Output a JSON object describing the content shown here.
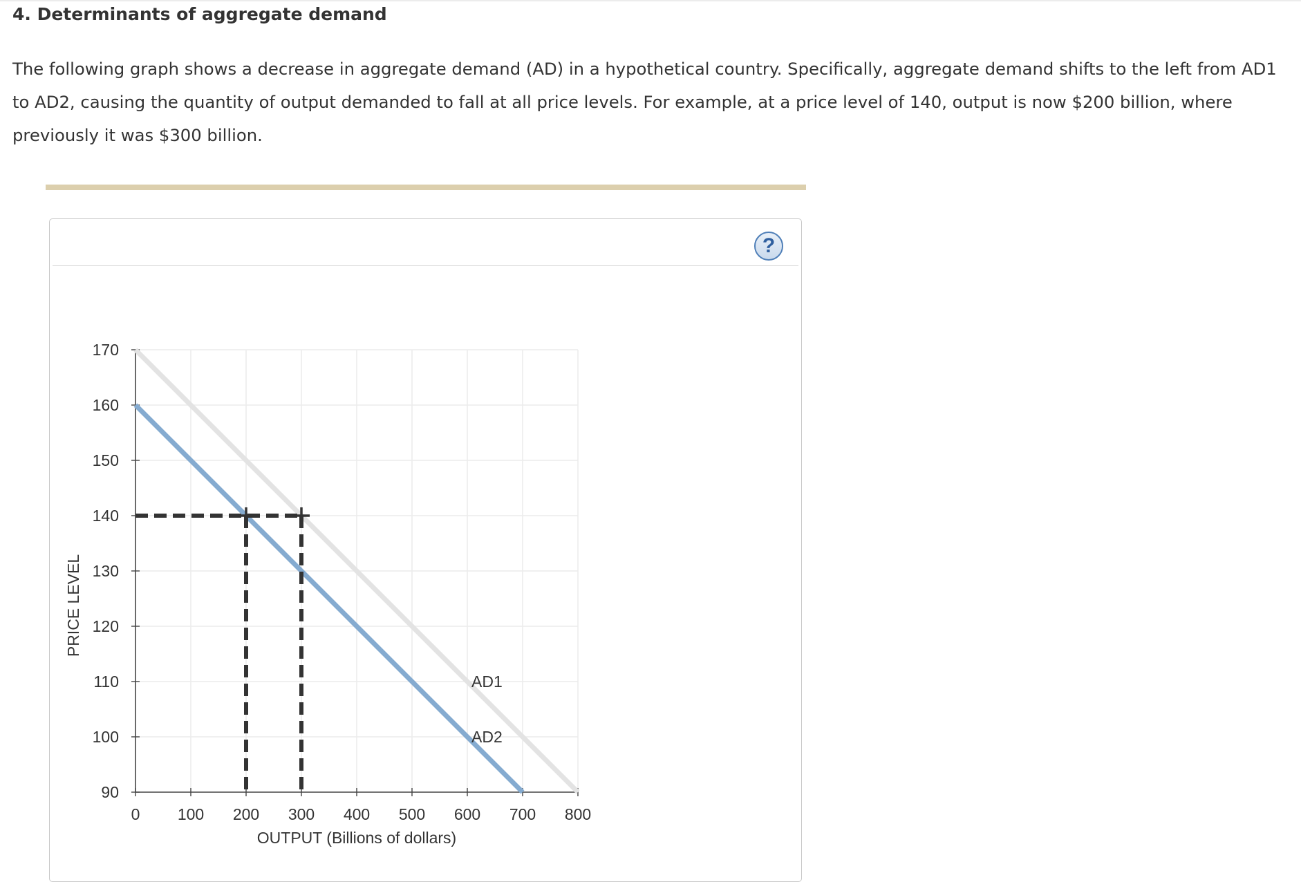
{
  "heading": "4. Determinants of aggregate demand",
  "prompt": "The following graph shows a decrease in aggregate demand (AD) in a hypothetical country. Specifically, aggregate demand shifts to the left from AD1 to AD2, causing the quantity of output demanded to fall at all price levels. For example, at a price level of 140, output is now $200 billion, where previously it was $300 billion.",
  "help_label": "?",
  "colors": {
    "ad1": "#e3e3e3",
    "ad2": "#85abd0",
    "guide": "#333333",
    "grid": "#ececec",
    "accent_bar": "#dccfad"
  },
  "chart_data": {
    "type": "line",
    "xlabel": "OUTPUT (Billions of dollars)",
    "ylabel": "PRICE LEVEL",
    "xlim": [
      0,
      800
    ],
    "ylim": [
      90,
      170
    ],
    "xticks": [
      0,
      100,
      200,
      300,
      400,
      500,
      600,
      700,
      800
    ],
    "yticks": [
      90,
      100,
      110,
      120,
      130,
      140,
      150,
      160,
      170
    ],
    "grid": true,
    "series": [
      {
        "name": "AD1",
        "x": [
          0,
          800
        ],
        "y": [
          170,
          90
        ],
        "color": "#e3e3e3",
        "label_at": [
          600,
          110
        ]
      },
      {
        "name": "AD2",
        "x": [
          0,
          700
        ],
        "y": [
          160,
          90
        ],
        "color": "#85abd0",
        "label_at": [
          600,
          100
        ]
      }
    ],
    "guides": {
      "price_level": 140,
      "outputs": [
        200,
        300
      ]
    }
  }
}
